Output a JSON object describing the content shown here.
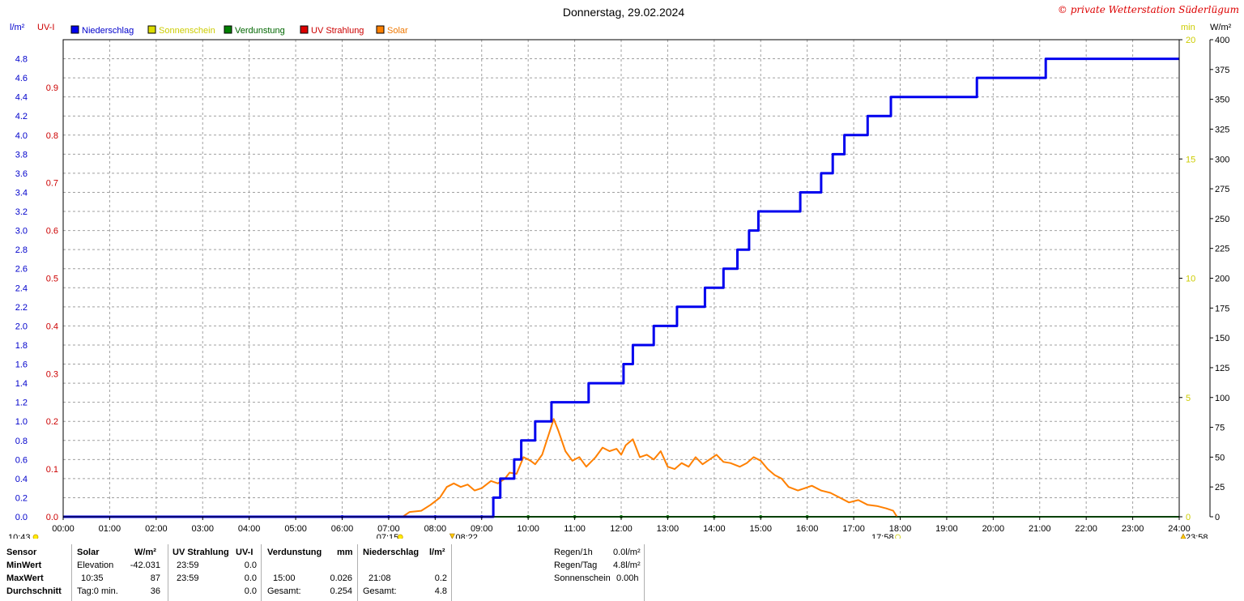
{
  "title": "Donnerstag, 29.02.2024",
  "copyright": "© private Wetterstation Süderlügum",
  "axis_units": {
    "left_outer": "l/m²",
    "left_inner": "UV-I",
    "right_inner": "min",
    "right_outer": "W/m²"
  },
  "legend": [
    {
      "label": "Niederschlag",
      "color": "#0000ee",
      "text_color": "#0000cc"
    },
    {
      "label": "Sonnenschein",
      "color": "#dddd00",
      "text_color": "#cccc00"
    },
    {
      "label": "Verdunstung",
      "color": "#008000",
      "text_color": "#006600"
    },
    {
      "label": "UV Strahlung",
      "color": "#dd0000",
      "text_color": "#cc0000"
    },
    {
      "label": "Solar",
      "color": "#ff8000",
      "text_color": "#ee7700"
    }
  ],
  "colors": {
    "rain": "#0000ee",
    "solar": "#ff8000",
    "evaporation": "#008000",
    "uv": "#dd0000",
    "sunshine": "#dddd00",
    "grid": "#a0a0a0",
    "left_outer_axis": "#0000cc",
    "left_inner_axis": "#cc0000",
    "right_inner_axis": "#cccc00",
    "right_outer_axis": "#000000"
  },
  "chart_data": {
    "type": "line",
    "title": "Donnerstag, 29.02.2024",
    "x_ticks": [
      "00:00",
      "01:00",
      "02:00",
      "03:00",
      "04:00",
      "05:00",
      "06:00",
      "07:00",
      "08:00",
      "09:00",
      "10:00",
      "11:00",
      "12:00",
      "13:00",
      "14:00",
      "15:00",
      "16:00",
      "17:00",
      "18:00",
      "19:00",
      "20:00",
      "21:00",
      "22:00",
      "23:00",
      "24:00"
    ],
    "xlim_hours": [
      0,
      24
    ],
    "grid": true,
    "axes": {
      "left_outer": {
        "label": "l/m²",
        "ylim": [
          0,
          5.0
        ],
        "ticks": [
          "0.0",
          "0.2",
          "0.4",
          "0.6",
          "0.8",
          "1.0",
          "1.2",
          "1.4",
          "1.6",
          "1.8",
          "2.0",
          "2.2",
          "2.4",
          "2.6",
          "2.8",
          "3.0",
          "3.2",
          "3.4",
          "3.6",
          "3.8",
          "4.0",
          "4.2",
          "4.4",
          "4.6",
          "4.8"
        ]
      },
      "left_inner": {
        "label": "UV-I",
        "ylim": [
          0,
          1.0
        ],
        "ticks": [
          "0.0",
          "0.1",
          "0.2",
          "0.3",
          "0.4",
          "0.5",
          "0.6",
          "0.7",
          "0.8",
          "0.9"
        ]
      },
      "right_inner": {
        "label": "min",
        "ylim": [
          0,
          20
        ],
        "ticks": [
          "0",
          "5",
          "10",
          "15",
          "20"
        ]
      },
      "right_outer": {
        "label": "W/m²",
        "ylim": [
          0,
          400
        ],
        "ticks": [
          "0",
          "25",
          "50",
          "75",
          "100",
          "125",
          "150",
          "175",
          "200",
          "225",
          "250",
          "275",
          "300",
          "325",
          "350",
          "375",
          "400"
        ]
      }
    },
    "series": [
      {
        "name": "Niederschlag",
        "axis": "left_outer",
        "step": true,
        "points": [
          [
            0,
            0
          ],
          [
            9.25,
            0
          ],
          [
            9.25,
            0.2
          ],
          [
            9.4,
            0.2
          ],
          [
            9.4,
            0.4
          ],
          [
            9.7,
            0.4
          ],
          [
            9.7,
            0.6
          ],
          [
            9.85,
            0.6
          ],
          [
            9.85,
            0.8
          ],
          [
            10.15,
            0.8
          ],
          [
            10.15,
            1.0
          ],
          [
            10.5,
            1.0
          ],
          [
            10.5,
            1.2
          ],
          [
            11.3,
            1.2
          ],
          [
            11.3,
            1.4
          ],
          [
            12.05,
            1.4
          ],
          [
            12.05,
            1.6
          ],
          [
            12.25,
            1.6
          ],
          [
            12.25,
            1.8
          ],
          [
            12.7,
            1.8
          ],
          [
            12.7,
            2.0
          ],
          [
            13.2,
            2.0
          ],
          [
            13.2,
            2.2
          ],
          [
            13.8,
            2.2
          ],
          [
            13.8,
            2.4
          ],
          [
            14.2,
            2.4
          ],
          [
            14.2,
            2.6
          ],
          [
            14.5,
            2.6
          ],
          [
            14.5,
            2.8
          ],
          [
            14.75,
            2.8
          ],
          [
            14.75,
            3.0
          ],
          [
            14.95,
            3.0
          ],
          [
            14.95,
            3.2
          ],
          [
            15.85,
            3.2
          ],
          [
            15.85,
            3.4
          ],
          [
            16.3,
            3.4
          ],
          [
            16.3,
            3.6
          ],
          [
            16.55,
            3.6
          ],
          [
            16.55,
            3.8
          ],
          [
            16.8,
            3.8
          ],
          [
            16.8,
            4.0
          ],
          [
            17.3,
            4.0
          ],
          [
            17.3,
            4.2
          ],
          [
            17.8,
            4.2
          ],
          [
            17.8,
            4.4
          ],
          [
            19.65,
            4.4
          ],
          [
            19.65,
            4.6
          ],
          [
            21.13,
            4.6
          ],
          [
            21.13,
            4.8
          ],
          [
            24,
            4.8
          ]
        ]
      },
      {
        "name": "Solar",
        "axis": "right_outer",
        "points": [
          [
            7.3,
            0
          ],
          [
            7.45,
            4
          ],
          [
            7.7,
            5
          ],
          [
            7.9,
            10
          ],
          [
            8.1,
            16
          ],
          [
            8.25,
            25
          ],
          [
            8.4,
            28
          ],
          [
            8.55,
            25
          ],
          [
            8.7,
            27
          ],
          [
            8.85,
            22
          ],
          [
            9.0,
            24
          ],
          [
            9.2,
            30
          ],
          [
            9.35,
            28
          ],
          [
            9.5,
            32
          ],
          [
            9.6,
            37
          ],
          [
            9.75,
            36
          ],
          [
            9.9,
            50
          ],
          [
            10.05,
            47
          ],
          [
            10.15,
            44
          ],
          [
            10.3,
            52
          ],
          [
            10.45,
            70
          ],
          [
            10.55,
            82
          ],
          [
            10.65,
            72
          ],
          [
            10.8,
            55
          ],
          [
            10.95,
            47
          ],
          [
            11.1,
            50
          ],
          [
            11.25,
            42
          ],
          [
            11.45,
            50
          ],
          [
            11.6,
            58
          ],
          [
            11.75,
            55
          ],
          [
            11.9,
            57
          ],
          [
            12.0,
            52
          ],
          [
            12.1,
            60
          ],
          [
            12.25,
            65
          ],
          [
            12.4,
            50
          ],
          [
            12.55,
            52
          ],
          [
            12.7,
            48
          ],
          [
            12.85,
            55
          ],
          [
            13.0,
            42
          ],
          [
            13.15,
            40
          ],
          [
            13.3,
            45
          ],
          [
            13.45,
            42
          ],
          [
            13.6,
            50
          ],
          [
            13.75,
            44
          ],
          [
            13.9,
            48
          ],
          [
            14.05,
            52
          ],
          [
            14.2,
            46
          ],
          [
            14.35,
            45
          ],
          [
            14.55,
            42
          ],
          [
            14.7,
            45
          ],
          [
            14.85,
            50
          ],
          [
            15.0,
            47
          ],
          [
            15.15,
            40
          ],
          [
            15.3,
            35
          ],
          [
            15.45,
            32
          ],
          [
            15.6,
            25
          ],
          [
            15.8,
            22
          ],
          [
            15.95,
            24
          ],
          [
            16.1,
            26
          ],
          [
            16.3,
            22
          ],
          [
            16.5,
            20
          ],
          [
            16.7,
            16
          ],
          [
            16.9,
            12
          ],
          [
            17.1,
            14
          ],
          [
            17.3,
            10
          ],
          [
            17.5,
            9
          ],
          [
            17.7,
            7
          ],
          [
            17.85,
            5
          ],
          [
            17.93,
            0
          ]
        ]
      },
      {
        "name": "Verdunstung",
        "axis": "left_outer",
        "points": [
          [
            0,
            0
          ],
          [
            24,
            0
          ]
        ]
      },
      {
        "name": "UV Strahlung",
        "axis": "left_inner",
        "points": [
          [
            0,
            0
          ],
          [
            24,
            0
          ]
        ]
      }
    ],
    "sun_markers": {
      "left_label": "10:43",
      "sunrise": "07:15",
      "noon": "08:22",
      "sunset": "17:58",
      "right_label": "23:58"
    }
  },
  "stats_table": {
    "row_headers": [
      "Sensor",
      "MinWert",
      "MaxWert",
      "Durchschnitt"
    ],
    "solar": {
      "header": "Solar",
      "unit": "W/m²",
      "min_label": "Elevation",
      "min_value": "-42.031",
      "max_time": "10:35",
      "max_value": "87",
      "avg_label": "Tag:0 min.",
      "avg_value": "36"
    },
    "uv": {
      "header": "UV Strahlung",
      "unit": "UV-I",
      "min_time": "23:59",
      "min_value": "0.0",
      "max_time": "23:59",
      "max_value": "0.0",
      "avg_value": "0.0"
    },
    "evap": {
      "header": "Verdunstung",
      "unit": "mm",
      "max_time": "15:00",
      "max_value": "0.026",
      "avg_label": "Gesamt:",
      "avg_value": "0.254"
    },
    "rain": {
      "header": "Niederschlag",
      "unit": "l/m²",
      "max_time": "21:08",
      "max_value": "0.2",
      "avg_label": "Gesamt:",
      "avg_value": "4.8"
    },
    "summary": [
      {
        "label": "Regen/1h",
        "value": "0.0l/m²"
      },
      {
        "label": "Regen/Tag",
        "value": "4.8l/m²"
      },
      {
        "label": "Sonnenschein",
        "value": "0.00h"
      }
    ]
  }
}
